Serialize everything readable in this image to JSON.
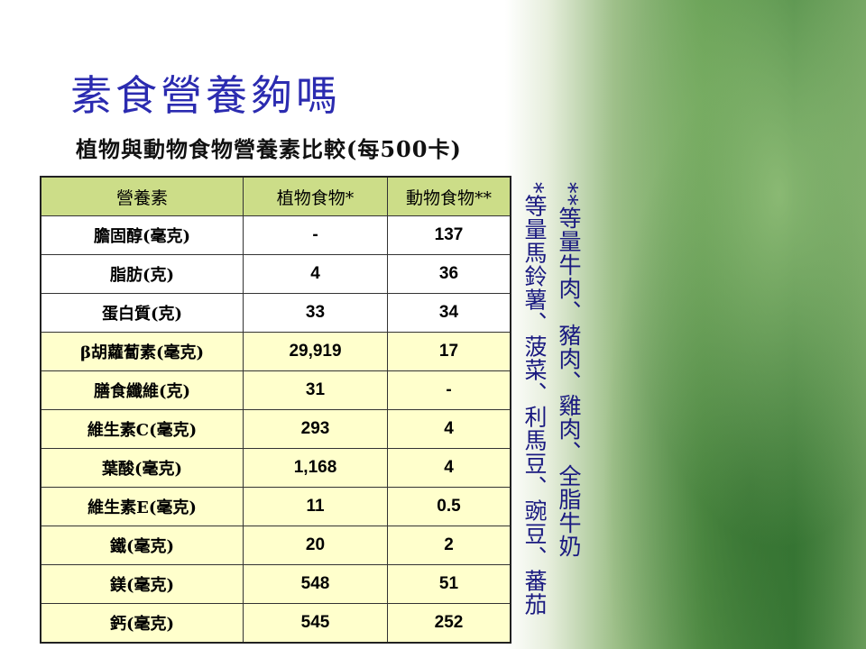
{
  "title": "素食營養夠嗎",
  "subtitle": "植物與動物食物營養素比較(每500卡)",
  "table": {
    "headers": [
      "營養素",
      "植物食物*",
      "動物食物**"
    ],
    "rows": [
      [
        "膽固醇(毫克)",
        "-",
        "137"
      ],
      [
        "脂肪(克)",
        "4",
        "36"
      ],
      [
        "蛋白質(克)",
        "33",
        "34"
      ],
      [
        "β胡蘿蔔素(毫克)",
        "29,919",
        "17"
      ],
      [
        "膳食纖維(克)",
        "31",
        "-"
      ],
      [
        "維生素C(毫克)",
        "293",
        "4"
      ],
      [
        "葉酸(毫克)",
        "1,168",
        "4"
      ],
      [
        "維生素E(毫克)",
        "11",
        "0.5"
      ],
      [
        "鐵(毫克)",
        "20",
        "2"
      ],
      [
        "鎂(毫克)",
        "548",
        "51"
      ],
      [
        "鈣(毫克)",
        "545",
        "252"
      ]
    ]
  },
  "notes": {
    "animal": "**等量牛肉、豬肉、雞肉、全脂牛奶",
    "plant": "*等量馬鈴薯、菠菜、利馬豆、豌豆、蕃茄"
  },
  "colors": {
    "title": "#2b2bb0",
    "header_bg": "#ccdd88",
    "row_highlight": "#ffffcc"
  }
}
